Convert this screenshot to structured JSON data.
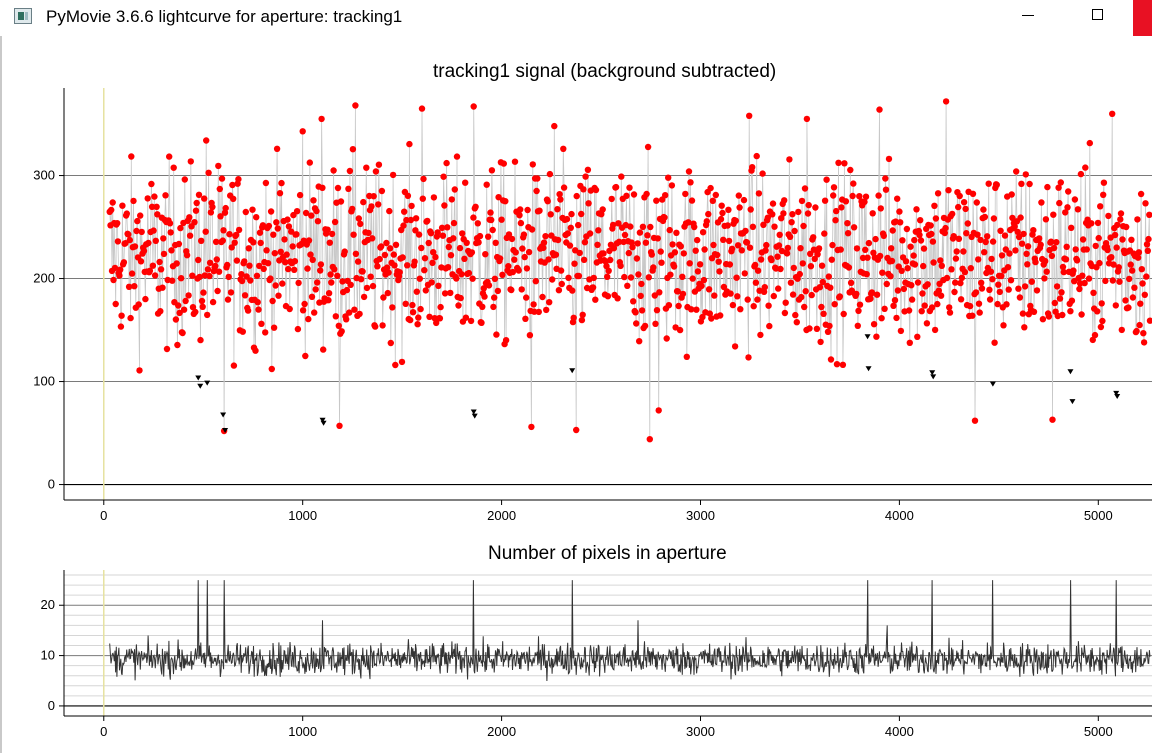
{
  "window": {
    "title": "PyMovie 3.6.6 lightcurve for aperture: tracking1",
    "controls": {
      "minimize_icon": "minimize-icon",
      "maximize_icon": "maximize-icon",
      "close_icon": "close-icon"
    },
    "close_color": "#e81123"
  },
  "chart_data": [
    {
      "type": "scatter",
      "title": "tracking1 signal (background subtracted)",
      "xlabel": "",
      "ylabel": "",
      "xlim": [
        -200,
        5270
      ],
      "ylim": [
        -15,
        385
      ],
      "x_ticks": [
        "0",
        "1000",
        "2000",
        "3000",
        "4000",
        "5000"
      ],
      "y_ticks": [
        "0",
        "100",
        "200",
        "300"
      ],
      "grid_y": [
        0,
        100,
        200,
        300
      ],
      "colors": {
        "points": "#ff0000",
        "line": "#c8c8c8",
        "flagged": "#000000",
        "cursor": "#e6e2a0"
      },
      "series": [
        {
          "x_range": [
            30,
            5260
          ],
          "point_count": 5230,
          "approx_mean": 222,
          "approx_range": [
            45,
            372
          ],
          "peaks": [
            {
              "x": 1265,
              "y": 368
            },
            {
              "x": 4235,
              "y": 372
            },
            {
              "x": 3900,
              "y": 364
            },
            {
              "x": 1600,
              "y": 365
            },
            {
              "x": 1860,
              "y": 367
            },
            {
              "x": 5070,
              "y": 360
            },
            {
              "x": 3245,
              "y": 358
            },
            {
              "x": 1095,
              "y": 355
            },
            {
              "x": 3535,
              "y": 355
            },
            {
              "x": 1000,
              "y": 343
            },
            {
              "x": 2265,
              "y": 348
            },
            {
              "x": 515,
              "y": 334
            }
          ],
          "dips": [
            {
              "x": 2745,
              "y": 44
            },
            {
              "x": 2375,
              "y": 53
            },
            {
              "x": 605,
              "y": 52
            },
            {
              "x": 1185,
              "y": 57
            },
            {
              "x": 2150,
              "y": 56
            },
            {
              "x": 4380,
              "y": 62
            },
            {
              "x": 4770,
              "y": 63
            },
            {
              "x": 2790,
              "y": 72
            }
          ]
        }
      ],
      "flagged_points": [
        {
          "x": 475,
          "y": 103
        },
        {
          "x": 485,
          "y": 95
        },
        {
          "x": 520,
          "y": 98
        },
        {
          "x": 600,
          "y": 67
        },
        {
          "x": 610,
          "y": 52
        },
        {
          "x": 1100,
          "y": 62
        },
        {
          "x": 1105,
          "y": 59
        },
        {
          "x": 1860,
          "y": 70
        },
        {
          "x": 1865,
          "y": 66
        },
        {
          "x": 2355,
          "y": 110
        },
        {
          "x": 3840,
          "y": 143
        },
        {
          "x": 3845,
          "y": 112
        },
        {
          "x": 4165,
          "y": 108
        },
        {
          "x": 4170,
          "y": 104
        },
        {
          "x": 4470,
          "y": 97
        },
        {
          "x": 4860,
          "y": 109
        },
        {
          "x": 4870,
          "y": 80
        },
        {
          "x": 5090,
          "y": 88
        },
        {
          "x": 5095,
          "y": 85
        }
      ]
    },
    {
      "type": "line",
      "title": "Number of pixels in aperture",
      "xlabel": "",
      "ylabel": "",
      "xlim": [
        -200,
        5270
      ],
      "ylim": [
        -2,
        27
      ],
      "x_ticks": [
        "0",
        "1000",
        "2000",
        "3000",
        "4000",
        "5000"
      ],
      "y_ticks": [
        "0",
        "10",
        "20"
      ],
      "grid_y_major": [
        0,
        10,
        20
      ],
      "grid_y_minor": [
        2,
        4,
        6,
        8,
        12,
        14,
        16,
        18,
        22,
        24,
        26
      ],
      "colors": {
        "line": "#333333",
        "cursor": "#e6e2a0"
      },
      "series": [
        {
          "x_range": [
            30,
            5260
          ],
          "approx_mean": 9.3,
          "approx_range": [
            4,
            14
          ],
          "spikes": [
            {
              "x": 475,
              "y": 25
            },
            {
              "x": 520,
              "y": 25
            },
            {
              "x": 605,
              "y": 25
            },
            {
              "x": 1100,
              "y": 25
            },
            {
              "x": 1860,
              "y": 25
            },
            {
              "x": 2355,
              "y": 25
            },
            {
              "x": 3840,
              "y": 25
            },
            {
              "x": 4165,
              "y": 25
            },
            {
              "x": 4470,
              "y": 25
            },
            {
              "x": 4860,
              "y": 25
            },
            {
              "x": 5090,
              "y": 25
            }
          ],
          "minor_spikes": [
            {
              "x": 2685,
              "y": 17
            },
            {
              "x": 1100,
              "y": 17
            },
            {
              "x": 3940,
              "y": 16
            }
          ]
        }
      ]
    }
  ]
}
